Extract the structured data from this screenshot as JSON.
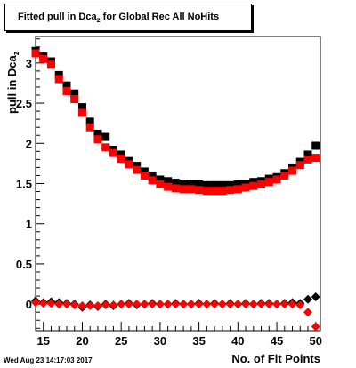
{
  "title": {
    "prefix": "Fitted pull in Dca",
    "subscript": "z",
    "suffix": " for Global Rec All NoHits"
  },
  "timestamp": "Wed Aug 23 14:17:03 2017",
  "chart_data": {
    "type": "scatter",
    "xlabel": "No. of Fit Points",
    "ylabel": {
      "text": "pull in Dca",
      "subscript": "z"
    },
    "xlim": [
      14,
      50.6
    ],
    "ylim": [
      -0.33,
      3.33
    ],
    "xticks": [
      15,
      20,
      25,
      30,
      35,
      40,
      45,
      50
    ],
    "yticks": [
      0,
      0.5,
      1,
      1.5,
      2,
      2.5,
      3
    ],
    "ytick_labels": [
      "0",
      "0.5",
      "1",
      "1.5",
      "2",
      "2.5",
      "3"
    ],
    "series": [
      {
        "marker": "square",
        "color": "#000000",
        "x": [
          14,
          15,
          16,
          17,
          18,
          19,
          20,
          21,
          22,
          23,
          24,
          25,
          26,
          27,
          28,
          29,
          30,
          31,
          32,
          33,
          34,
          35,
          36,
          37,
          38,
          39,
          40,
          41,
          42,
          43,
          44,
          45,
          46,
          47,
          48,
          49,
          50
        ],
        "y": [
          3.15,
          3.08,
          3.02,
          2.85,
          2.72,
          2.62,
          2.45,
          2.27,
          2.12,
          2.08,
          1.92,
          1.86,
          1.78,
          1.72,
          1.65,
          1.6,
          1.55,
          1.53,
          1.51,
          1.5,
          1.49,
          1.49,
          1.48,
          1.48,
          1.48,
          1.48,
          1.49,
          1.5,
          1.52,
          1.53,
          1.56,
          1.58,
          1.63,
          1.7,
          1.77,
          1.86,
          1.97
        ]
      },
      {
        "marker": "square",
        "color": "#ff0000",
        "x": [
          14,
          15,
          16,
          17,
          18,
          19,
          20,
          21,
          22,
          23,
          24,
          25,
          26,
          27,
          28,
          29,
          30,
          31,
          32,
          33,
          34,
          35,
          36,
          37,
          38,
          39,
          40,
          41,
          42,
          43,
          44,
          45,
          46,
          47,
          48,
          49,
          50
        ],
        "y": [
          3.12,
          3.05,
          2.98,
          2.8,
          2.65,
          2.55,
          2.38,
          2.2,
          2.05,
          1.95,
          1.88,
          1.81,
          1.74,
          1.67,
          1.6,
          1.54,
          1.49,
          1.46,
          1.44,
          1.43,
          1.43,
          1.42,
          1.41,
          1.41,
          1.41,
          1.42,
          1.43,
          1.45,
          1.47,
          1.49,
          1.52,
          1.55,
          1.6,
          1.66,
          1.73,
          1.8,
          1.82
        ]
      },
      {
        "marker": "diamond",
        "color": "#000000",
        "x": [
          14,
          15,
          16,
          17,
          18,
          19,
          20,
          21,
          22,
          23,
          24,
          25,
          26,
          27,
          28,
          29,
          30,
          31,
          32,
          33,
          34,
          35,
          36,
          37,
          38,
          39,
          40,
          41,
          42,
          43,
          44,
          45,
          46,
          47,
          48,
          49,
          50
        ],
        "y": [
          0.04,
          0.02,
          0.03,
          0.02,
          0.01,
          0.0,
          -0.04,
          -0.01,
          -0.03,
          0.0,
          -0.02,
          0.0,
          0.01,
          -0.01,
          0.0,
          0.01,
          0.0,
          0.0,
          0.01,
          0.0,
          0.0,
          0.01,
          0.0,
          0.01,
          0.0,
          0.01,
          0.0,
          0.01,
          0.0,
          0.01,
          0.01,
          0.0,
          0.01,
          0.02,
          0.01,
          0.06,
          0.09
        ]
      },
      {
        "marker": "diamond",
        "color": "#ff0000",
        "x": [
          14,
          15,
          16,
          17,
          18,
          19,
          20,
          21,
          22,
          23,
          24,
          25,
          26,
          27,
          28,
          29,
          30,
          31,
          32,
          33,
          34,
          35,
          36,
          37,
          38,
          39,
          40,
          41,
          42,
          43,
          44,
          45,
          46,
          47,
          48,
          49,
          50
        ],
        "y": [
          0.02,
          0.01,
          0.01,
          0.0,
          0.0,
          -0.01,
          -0.02,
          -0.02,
          -0.02,
          -0.01,
          -0.01,
          0.0,
          0.0,
          0.0,
          0.0,
          0.0,
          0.0,
          0.0,
          0.0,
          0.0,
          0.0,
          0.0,
          0.0,
          0.0,
          0.0,
          0.0,
          0.0,
          0.0,
          0.0,
          0.0,
          0.0,
          0.0,
          0.0,
          0.0,
          -0.01,
          -0.1,
          -0.28
        ]
      }
    ]
  }
}
